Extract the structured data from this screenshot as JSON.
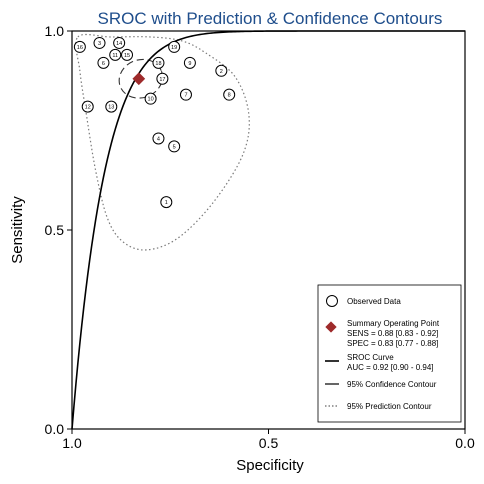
{
  "chart_data": {
    "type": "scatter",
    "title": "SROC with Prediction & Confidence Contours",
    "xlabel": "Specificity",
    "ylabel": "Sensitivity",
    "x_reversed": true,
    "xlim": [
      1.0,
      0.0
    ],
    "ylim": [
      0.0,
      1.0
    ],
    "x_ticks": [
      "1.0",
      "0.5",
      "0.0"
    ],
    "y_ticks": [
      "0.0",
      "0.5",
      "1.0"
    ],
    "x_tick_values": [
      1.0,
      0.5,
      0.0
    ],
    "y_tick_values": [
      0.0,
      0.5,
      1.0
    ],
    "grid": false,
    "legend_position": "bottom-right",
    "observed": [
      {
        "id": "1",
        "spec": 0.76,
        "sens": 0.57
      },
      {
        "id": "2",
        "spec": 0.62,
        "sens": 0.9
      },
      {
        "id": "3",
        "spec": 0.93,
        "sens": 0.97
      },
      {
        "id": "4",
        "spec": 0.78,
        "sens": 0.73
      },
      {
        "id": "5",
        "spec": 0.74,
        "sens": 0.71
      },
      {
        "id": "6",
        "spec": 0.92,
        "sens": 0.92
      },
      {
        "id": "7",
        "spec": 0.71,
        "sens": 0.84
      },
      {
        "id": "8",
        "spec": 0.6,
        "sens": 0.84
      },
      {
        "id": "9",
        "spec": 0.7,
        "sens": 0.92
      },
      {
        "id": "10",
        "spec": 0.8,
        "sens": 0.83
      },
      {
        "id": "11",
        "spec": 0.89,
        "sens": 0.94
      },
      {
        "id": "12",
        "spec": 0.96,
        "sens": 0.81
      },
      {
        "id": "13",
        "spec": 0.9,
        "sens": 0.81
      },
      {
        "id": "14",
        "spec": 0.88,
        "sens": 0.97
      },
      {
        "id": "15",
        "spec": 0.86,
        "sens": 0.94
      },
      {
        "id": "16",
        "spec": 0.98,
        "sens": 0.96
      },
      {
        "id": "17",
        "spec": 0.77,
        "sens": 0.88
      },
      {
        "id": "18",
        "spec": 0.78,
        "sens": 0.92
      },
      {
        "id": "19",
        "spec": 0.74,
        "sens": 0.96
      }
    ],
    "summary_point": {
      "spec": 0.83,
      "sens": 0.88,
      "color": "#9e2a2b"
    },
    "sroc_auc": 0.92,
    "legend": [
      {
        "symbol": "circle",
        "label": "Observed Data"
      },
      {
        "symbol": "diamond",
        "label": "Summary Operating Point",
        "lines": [
          "SENS = 0.88 [0.83 - 0.92]",
          "SPEC = 0.83 [0.77 - 0.88]"
        ]
      },
      {
        "symbol": "solid",
        "label": "SROC Curve",
        "lines": [
          "AUC = 0.92 [0.90 - 0.94]"
        ]
      },
      {
        "symbol": "dashed",
        "label": "95% Confidence Contour"
      },
      {
        "symbol": "dotted",
        "label": "95% Prediction Contour"
      }
    ]
  }
}
